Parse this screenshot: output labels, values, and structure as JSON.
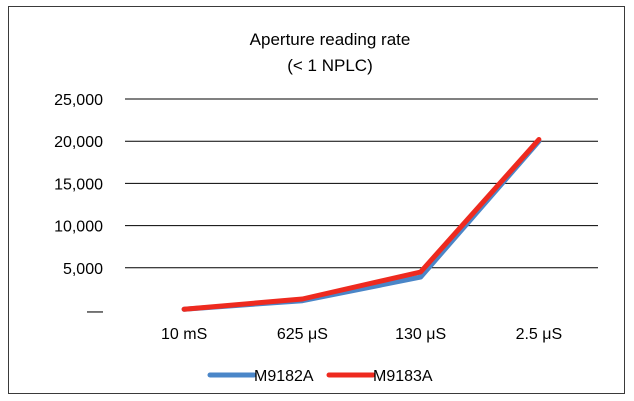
{
  "chart_data": {
    "type": "line",
    "title": "Aperture reading rate",
    "subtitle": "(< 1 NPLC)",
    "xlabel": "",
    "ylabel": "",
    "categories": [
      "10 mS",
      "625 μS",
      "130 μS",
      "2.5 μS"
    ],
    "y_tick_labels": [
      "—",
      "5,000",
      "10,000",
      "15,000",
      "20,000",
      "25,000"
    ],
    "y_ticks": [
      0,
      5000,
      10000,
      15000,
      20000,
      25000
    ],
    "ylim": [
      0,
      25000
    ],
    "grid": true,
    "legend_position": "bottom",
    "series": [
      {
        "name": "M9182A",
        "color": "#4a86c8",
        "values": [
          100,
          1100,
          3900,
          20000
        ]
      },
      {
        "name": "M9183A",
        "color": "#ee2a1f",
        "values": [
          100,
          1300,
          4500,
          20200
        ]
      }
    ]
  }
}
